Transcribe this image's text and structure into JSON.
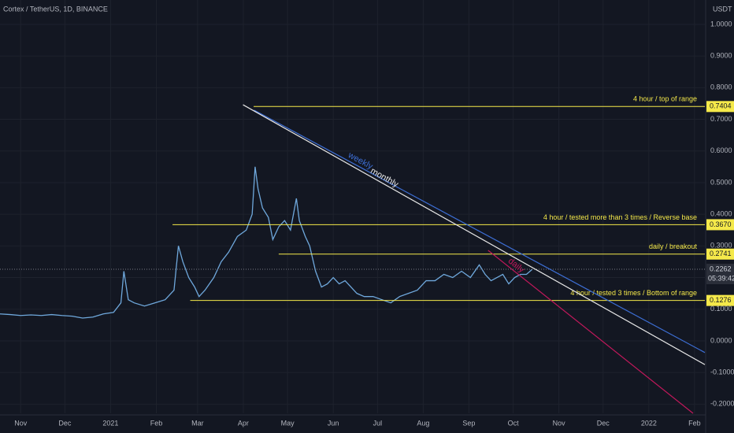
{
  "chart_data": {
    "type": "line",
    "title": "Cortex / TetherUS, 1D, BINANCE",
    "y_axis_label": "USDT",
    "color": "#6fa8dc",
    "x": [
      -75,
      -68,
      -61,
      -54,
      -47,
      -40,
      -33,
      -26,
      -19,
      -12,
      -5,
      2,
      7,
      9,
      12,
      16,
      23,
      30,
      37,
      43,
      46,
      49,
      53,
      57,
      60,
      64,
      70,
      75,
      80,
      86,
      92,
      96,
      98,
      100,
      103,
      107,
      110,
      114,
      118,
      122,
      126,
      128,
      132,
      135,
      139,
      143,
      147,
      151,
      155,
      159,
      163,
      167,
      172,
      178,
      184,
      190,
      196,
      202,
      208,
      214,
      220,
      226,
      232,
      238,
      244,
      250,
      254,
      258,
      262,
      266,
      270,
      274,
      278,
      282,
      286
    ],
    "values": [
      0.085,
      0.083,
      0.08,
      0.082,
      0.08,
      0.083,
      0.08,
      0.078,
      0.072,
      0.075,
      0.085,
      0.09,
      0.12,
      0.22,
      0.13,
      0.12,
      0.11,
      0.12,
      0.13,
      0.16,
      0.3,
      0.25,
      0.2,
      0.17,
      0.14,
      0.16,
      0.2,
      0.25,
      0.28,
      0.33,
      0.35,
      0.4,
      0.55,
      0.48,
      0.42,
      0.39,
      0.32,
      0.36,
      0.38,
      0.35,
      0.45,
      0.38,
      0.33,
      0.3,
      0.22,
      0.17,
      0.18,
      0.2,
      0.18,
      0.19,
      0.17,
      0.15,
      0.14,
      0.14,
      0.13,
      0.12,
      0.14,
      0.15,
      0.16,
      0.19,
      0.19,
      0.21,
      0.2,
      0.22,
      0.2,
      0.24,
      0.21,
      0.19,
      0.2,
      0.21,
      0.18,
      0.2,
      0.21,
      0.21,
      0.2262
    ],
    "xlim": [
      -75,
      403
    ],
    "xticks": [
      {
        "value": -61,
        "label": "Nov"
      },
      {
        "value": -31,
        "label": "Dec"
      },
      {
        "value": 0,
        "label": "2021"
      },
      {
        "value": 31,
        "label": "Feb"
      },
      {
        "value": 59,
        "label": "Mar"
      },
      {
        "value": 90,
        "label": "Apr"
      },
      {
        "value": 120,
        "label": "May"
      },
      {
        "value": 151,
        "label": "Jun"
      },
      {
        "value": 181,
        "label": "Jul"
      },
      {
        "value": 212,
        "label": "Aug"
      },
      {
        "value": 243,
        "label": "Sep"
      },
      {
        "value": 273,
        "label": "Oct"
      },
      {
        "value": 304,
        "label": "Nov"
      },
      {
        "value": 334,
        "label": "Dec"
      },
      {
        "value": 365,
        "label": "2022"
      },
      {
        "value": 396,
        "label": "Feb"
      }
    ],
    "ylim": [
      -0.229,
      1.077
    ],
    "yticks": [
      {
        "value": -0.2,
        "label": "-0.2000"
      },
      {
        "value": -0.1,
        "label": "-0.1000"
      },
      {
        "value": 0,
        "label": "0.0000"
      },
      {
        "value": 0.1,
        "label": "0.1000"
      },
      {
        "value": 0.2,
        "label": "0.2000"
      },
      {
        "value": 0.3,
        "label": "0.3000"
      },
      {
        "value": 0.4,
        "label": "0.4000"
      },
      {
        "value": 0.5,
        "label": "0.5000"
      },
      {
        "value": 0.6,
        "label": "0.6000"
      },
      {
        "value": 0.7,
        "label": "0.7000"
      },
      {
        "value": 0.8,
        "label": "0.8000"
      },
      {
        "value": 0.9,
        "label": "0.9000"
      },
      {
        "value": 1,
        "label": "1.0000"
      }
    ],
    "grid": true,
    "levels": [
      {
        "value": 0.7404,
        "label": "0.7404",
        "text": "4 hour / top of range",
        "start": 97
      },
      {
        "value": 0.367,
        "label": "0.3670",
        "text": "4 hour / tested more than 3 times / Reverse base",
        "start": 42
      },
      {
        "value": 0.2741,
        "label": "0.2741",
        "text": "daily / breakout",
        "start": 114
      },
      {
        "value": 0.1276,
        "label": "0.1276",
        "text": "4 hour / tested 3 times / Bottom of range",
        "start": 54
      }
    ],
    "level_color": "#f5e94a",
    "current_price": {
      "value": 0.2262,
      "label": "0.2262",
      "countdown": "05:39:42"
    },
    "trendlines": [
      {
        "name": "weekly",
        "color": "#3d6fd6",
        "x": [
          97.3,
          403
        ],
        "values": [
          0.729,
          -0.037
        ]
      },
      {
        "name": "monthly",
        "color": "#e8e8e8",
        "x": [
          89.8,
          403
        ],
        "values": [
          0.746,
          -0.075
        ]
      },
      {
        "name": "daily",
        "color": "#c2185b",
        "x": [
          256,
          395
        ],
        "values": [
          0.286,
          -0.229
        ]
      }
    ]
  }
}
